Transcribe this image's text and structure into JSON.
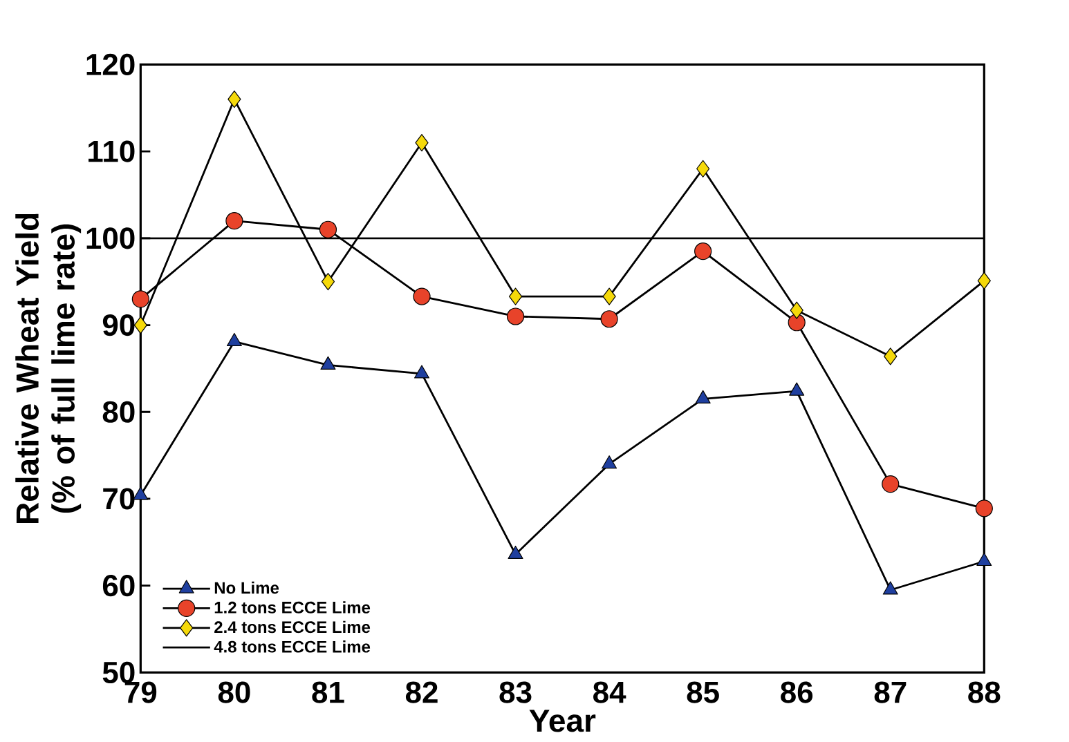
{
  "chart_data": {
    "type": "line",
    "xlabel": "Year",
    "ylabel": "Relative Wheat Yield (% of full lime rate)",
    "categories": [
      "79",
      "80",
      "81",
      "82",
      "83",
      "84",
      "85",
      "86",
      "87",
      "88"
    ],
    "ylim": [
      50,
      120
    ],
    "yticks": [
      50,
      60,
      70,
      80,
      90,
      100,
      110,
      120
    ],
    "grid": false,
    "legend": "bottom left",
    "line_style": "solid",
    "series": [
      {
        "name": "No Lime",
        "color": "#1f3f9f",
        "marker": "triangle",
        "values": [
          70.4,
          88.1,
          85.4,
          84.4,
          63.6,
          74.0,
          81.5,
          82.4,
          59.5,
          62.8
        ]
      },
      {
        "name": "1.2 tons ECCE Lime",
        "color": "#e8432a",
        "marker": "circle",
        "values": [
          93,
          102,
          101,
          93.3,
          91,
          90.7,
          98.5,
          90.3,
          71.7,
          68.9
        ]
      },
      {
        "name": "2.4 tons ECCE Lime",
        "color": "#f5d90a",
        "marker": "diamond",
        "values": [
          90,
          116,
          95,
          111,
          93.3,
          93.3,
          108,
          91.7,
          86.4,
          95.1
        ]
      },
      {
        "name": "4.8 tons ECCE Lime",
        "color": "#000000",
        "marker": "none",
        "values": [
          100,
          100,
          100,
          100,
          100,
          100,
          100,
          100,
          100,
          100
        ]
      }
    ]
  }
}
